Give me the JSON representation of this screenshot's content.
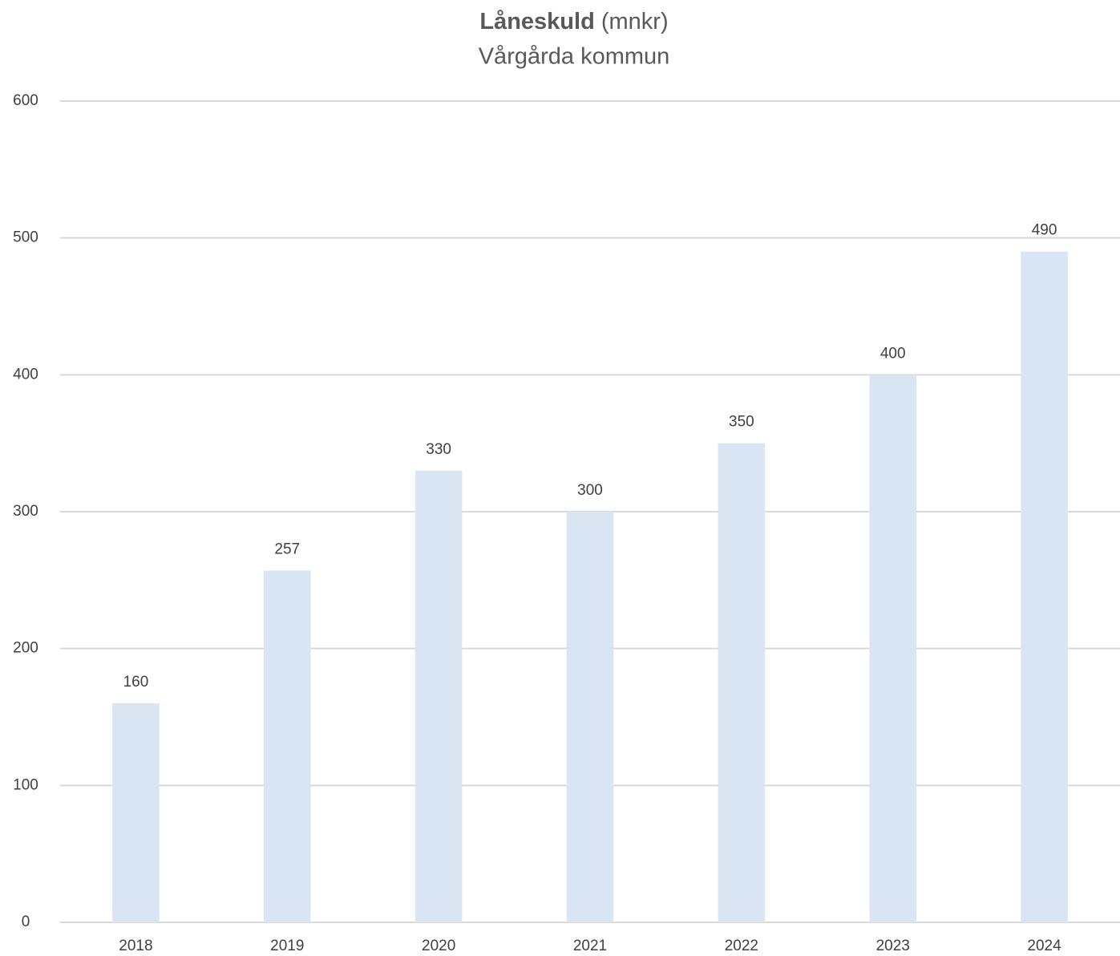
{
  "chart_data": {
    "type": "bar",
    "title": "Låneskuld",
    "title_unit": "(mnkr)",
    "subtitle": "Vårgårda kommun",
    "categories": [
      "2018",
      "2019",
      "2020",
      "2021",
      "2022",
      "2023",
      "2024"
    ],
    "values": [
      160,
      257,
      330,
      300,
      350,
      400,
      490
    ],
    "color": "#dae5f4",
    "ylim": [
      0,
      600
    ],
    "yticks": [
      0,
      100,
      200,
      300,
      400,
      500,
      600
    ],
    "grid": true
  }
}
